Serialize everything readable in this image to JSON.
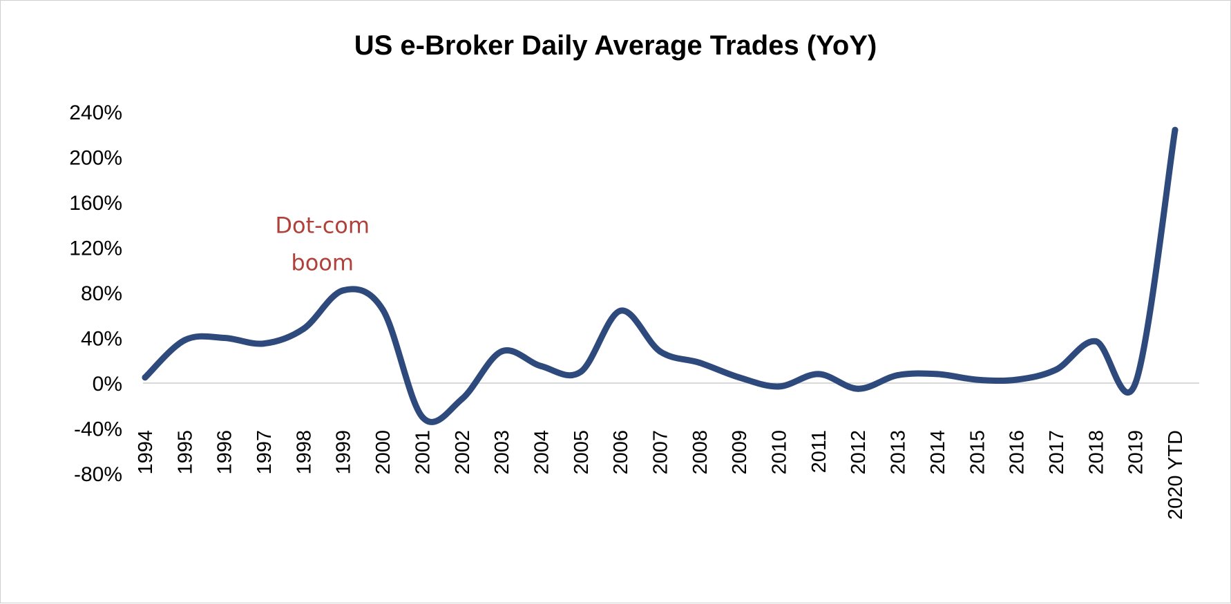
{
  "chart_data": {
    "type": "line",
    "title": "US e-Broker Daily Average Trades (YoY)",
    "xlabel": "",
    "ylabel": "",
    "categories": [
      "1994",
      "1995",
      "1996",
      "1997",
      "1998",
      "1999",
      "2000",
      "2001",
      "2002",
      "2003",
      "2004",
      "2005",
      "2006",
      "2007",
      "2008",
      "2009",
      "2010",
      "2011",
      "2012",
      "2013",
      "2014",
      "2015",
      "2016",
      "2017",
      "2018",
      "2019",
      "2020 YTD"
    ],
    "series": [
      {
        "values": [
          5,
          38,
          40,
          35,
          48,
          82,
          65,
          -30,
          -14,
          28,
          15,
          10,
          64,
          28,
          18,
          5,
          -3,
          8,
          -5,
          7,
          8,
          3,
          3,
          12,
          37,
          0,
          224
        ],
        "color": "#2e4a7d"
      }
    ],
    "ylim": [
      -80,
      240
    ],
    "yticks": [
      -80,
      -40,
      0,
      40,
      80,
      120,
      160,
      200,
      240
    ],
    "ytick_labels": [
      "-80%",
      "-40%",
      "0%",
      "40%",
      "80%",
      "120%",
      "160%",
      "200%",
      "240%"
    ],
    "grid": false,
    "zero_line_color": "#d9d9d9",
    "annotations": [
      {
        "lines": [
          "Dot-com",
          "boom"
        ],
        "near_category": "1999",
        "at_value": 145,
        "color": "#b0403a"
      }
    ]
  }
}
